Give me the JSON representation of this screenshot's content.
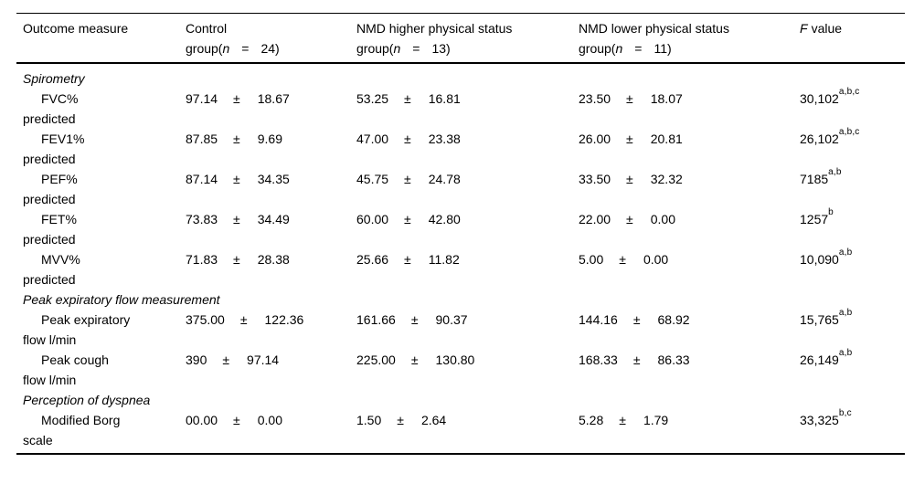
{
  "pm_symbol": "±",
  "colors": {
    "text": "#000000",
    "background": "#ffffff",
    "rule": "#000000"
  },
  "table": {
    "header": {
      "outcome_label": "Outcome measure",
      "groups": [
        {
          "name": "Control",
          "group_prefix": "group(",
          "n_symbol": "n",
          "equals": "=",
          "count": "24)"
        },
        {
          "name": "NMD higher physical status",
          "group_prefix": "group(",
          "n_symbol": "n",
          "equals": "=",
          "count": "13)"
        },
        {
          "name": "NMD lower physical status",
          "group_prefix": "group(",
          "n_symbol": "n",
          "equals": "=",
          "count": "11)"
        }
      ],
      "f_label_italic": "F",
      "f_label_rest": "value"
    },
    "sections": [
      {
        "title": "Spirometry",
        "rows": [
          {
            "label_line1": "FVC%",
            "label_line2": "predicted",
            "control_mean": "97.14",
            "control_sd": "18.67",
            "higher_mean": "53.25",
            "higher_sd": "16.81",
            "lower_mean": "23.50",
            "lower_sd": "18.07",
            "f_value": "30,102",
            "f_sup": "a,b,c"
          },
          {
            "label_line1": "FEV1%",
            "label_line2": "predicted",
            "control_mean": "87.85",
            "control_sd": "9.69",
            "higher_mean": "47.00",
            "higher_sd": "23.38",
            "lower_mean": "26.00",
            "lower_sd": "20.81",
            "f_value": "26,102",
            "f_sup": "a,b,c"
          },
          {
            "label_line1": "PEF%",
            "label_line2": "predicted",
            "control_mean": "87.14",
            "control_sd": "34.35",
            "higher_mean": "45.75",
            "higher_sd": "24.78",
            "lower_mean": "33.50",
            "lower_sd": "32.32",
            "f_value": "7185",
            "f_sup": "a,b"
          },
          {
            "label_line1": "FET%",
            "label_line2": "predicted",
            "control_mean": "73.83",
            "control_sd": "34.49",
            "higher_mean": "60.00",
            "higher_sd": "42.80",
            "lower_mean": "22.00",
            "lower_sd": "0.00",
            "f_value": "1257",
            "f_sup": "b"
          },
          {
            "label_line1": "MVV%",
            "label_line2": "predicted",
            "control_mean": "71.83",
            "control_sd": "28.38",
            "higher_mean": "25.66",
            "higher_sd": "11.82",
            "lower_mean": "5.00",
            "lower_sd": "0.00",
            "f_value": "10,090",
            "f_sup": "a,b"
          }
        ]
      },
      {
        "title": "Peak expiratory flow measurement",
        "rows": [
          {
            "label_line1": "Peak expiratory",
            "label_line2": "flow l/min",
            "control_mean": "375.00",
            "control_sd": "122.36",
            "higher_mean": "161.66",
            "higher_sd": "90.37",
            "lower_mean": "144.16",
            "lower_sd": "68.92",
            "f_value": "15,765",
            "f_sup": "a,b"
          },
          {
            "label_line1": "Peak cough",
            "label_line2": "flow l/min",
            "control_mean": "390",
            "control_sd": "97.14",
            "higher_mean": "225.00",
            "higher_sd": "130.80",
            "lower_mean": "168.33",
            "lower_sd": "86.33",
            "f_value": "26,149",
            "f_sup": "a,b"
          }
        ]
      },
      {
        "title": "Perception of dyspnea",
        "rows": [
          {
            "label_line1": "Modified Borg",
            "label_line2": "scale",
            "control_mean": "00.00",
            "control_sd": "0.00",
            "higher_mean": "1.50",
            "higher_sd": "2.64",
            "lower_mean": "5.28",
            "lower_sd": "1.79",
            "f_value": "33,325",
            "f_sup": "b,c"
          }
        ]
      }
    ]
  }
}
